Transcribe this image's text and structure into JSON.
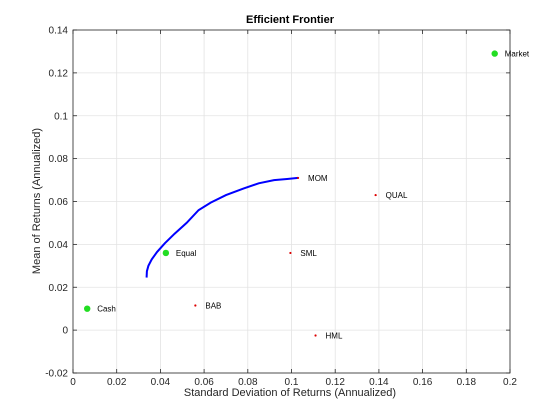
{
  "chart_data": {
    "type": "scatter",
    "title": "Efficient Frontier",
    "xlabel": "Standard Deviation of Returns (Annualized)",
    "ylabel": "Mean of Returns (Annualized)",
    "xlim": [
      0,
      0.2
    ],
    "ylim": [
      -0.02,
      0.14
    ],
    "xticks": [
      0,
      0.02,
      0.04,
      0.06,
      0.08,
      0.1,
      0.12,
      0.14,
      0.16,
      0.18,
      0.2
    ],
    "xtick_labels": [
      "0",
      "0.02",
      "0.04",
      "0.06",
      "0.08",
      "0.1",
      "0.12",
      "0.14",
      "0.16",
      "0.18",
      "0.2"
    ],
    "yticks": [
      -0.02,
      0,
      0.02,
      0.04,
      0.06,
      0.08,
      0.1,
      0.12,
      0.14
    ],
    "ytick_labels": [
      "-0.02",
      "0",
      "0.02",
      "0.04",
      "0.06",
      "0.08",
      "0.1",
      "0.12",
      "0.14"
    ],
    "grid": true,
    "frontier": {
      "color": "#0000ff",
      "points": [
        [
          0.0337,
          0.0245
        ],
        [
          0.0338,
          0.0275
        ],
        [
          0.0345,
          0.03
        ],
        [
          0.036,
          0.033
        ],
        [
          0.0385,
          0.0365
        ],
        [
          0.042,
          0.0405
        ],
        [
          0.0465,
          0.045
        ],
        [
          0.052,
          0.05
        ],
        [
          0.0575,
          0.056
        ],
        [
          0.063,
          0.0595
        ],
        [
          0.07,
          0.063
        ],
        [
          0.078,
          0.066
        ],
        [
          0.085,
          0.0685
        ],
        [
          0.092,
          0.07
        ],
        [
          0.098,
          0.0705
        ],
        [
          0.103,
          0.071
        ]
      ]
    },
    "points": [
      {
        "label": "Market",
        "x": 0.193,
        "y": 0.129,
        "kind": "big",
        "color": "#22dd22"
      },
      {
        "label": "Cash",
        "x": 0.0065,
        "y": 0.01,
        "kind": "big",
        "color": "#22dd22"
      },
      {
        "label": "Equal",
        "x": 0.0425,
        "y": 0.036,
        "kind": "big",
        "color": "#22dd22"
      },
      {
        "label": "MOM",
        "x": 0.103,
        "y": 0.071,
        "kind": "small",
        "color": "#dd0000"
      },
      {
        "label": "QUAL",
        "x": 0.1385,
        "y": 0.063,
        "kind": "small",
        "color": "#dd0000"
      },
      {
        "label": "SML",
        "x": 0.0995,
        "y": 0.036,
        "kind": "small",
        "color": "#dd0000"
      },
      {
        "label": "BAB",
        "x": 0.056,
        "y": 0.0115,
        "kind": "small",
        "color": "#dd0000"
      },
      {
        "label": "HML",
        "x": 0.111,
        "y": -0.0025,
        "kind": "small",
        "color": "#dd0000"
      }
    ]
  }
}
